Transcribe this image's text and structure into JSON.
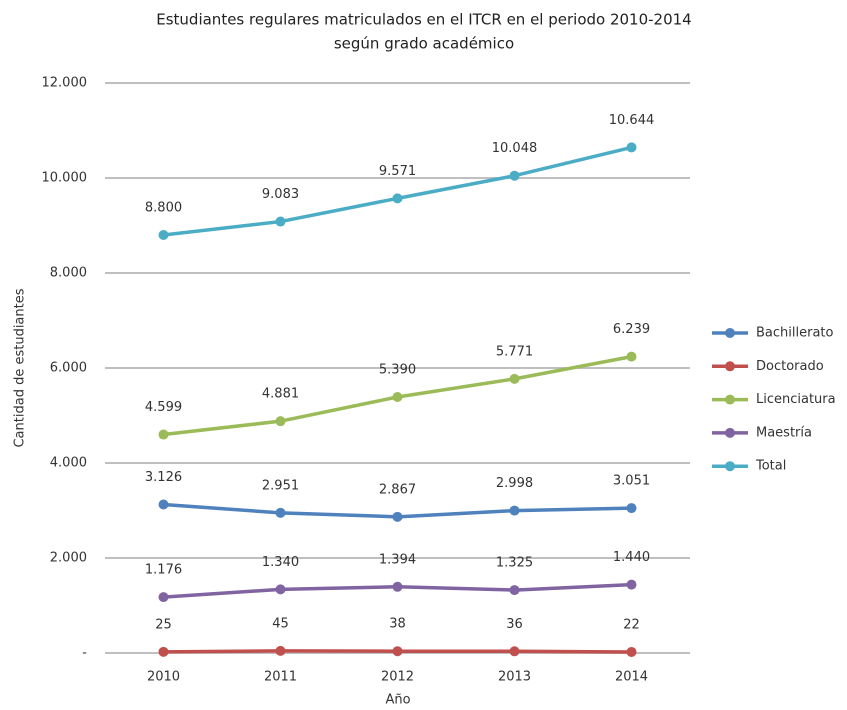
{
  "chart_data": {
    "type": "line",
    "title": [
      "Estudiantes regulares matriculados en el ITCR en el periodo 2010-2014",
      "según grado académico"
    ],
    "x_label": "Año",
    "y_label": "Cantidad de estudiantes",
    "categories": [
      "2010",
      "2011",
      "2012",
      "2013",
      "2014"
    ],
    "ylim": [
      0,
      12000
    ],
    "yticks": [
      {
        "value": 0,
        "label": "-"
      },
      {
        "value": 2000,
        "label": "2.000"
      },
      {
        "value": 4000,
        "label": "4.000"
      },
      {
        "value": 6000,
        "label": "6.000"
      },
      {
        "value": 8000,
        "label": "8.000"
      },
      {
        "value": 10000,
        "label": "10.000"
      },
      {
        "value": 12000,
        "label": "12.000"
      }
    ],
    "grid": true,
    "legend": "right",
    "series": [
      {
        "name": "Bachillerato",
        "color": "#4f81bd",
        "values": [
          3126,
          2951,
          2867,
          2998,
          3051
        ],
        "value_labels": [
          "3.126",
          "2.951",
          "2.867",
          "2.998",
          "3.051"
        ]
      },
      {
        "name": "Doctorado",
        "color": "#c0504d",
        "values": [
          25,
          45,
          38,
          36,
          22
        ],
        "value_labels": [
          "25",
          "45",
          "38",
          "36",
          "22"
        ]
      },
      {
        "name": "Licenciatura",
        "color": "#9bbb59",
        "values": [
          4599,
          4881,
          5390,
          5771,
          6239
        ],
        "value_labels": [
          "4.599",
          "4.881",
          "5.390",
          "5.771",
          "6.239"
        ]
      },
      {
        "name": "Maestría",
        "color": "#8064a2",
        "values": [
          1176,
          1340,
          1394,
          1325,
          1440
        ],
        "value_labels": [
          "1.176",
          "1.340",
          "1.394",
          "1.325",
          "1.440"
        ]
      },
      {
        "name": "Total",
        "color": "#4bacc6",
        "values": [
          8800,
          9083,
          9571,
          10048,
          10644
        ],
        "value_labels": [
          "8.800",
          "9.083",
          "9.571",
          "10.048",
          "10.644"
        ]
      }
    ]
  }
}
